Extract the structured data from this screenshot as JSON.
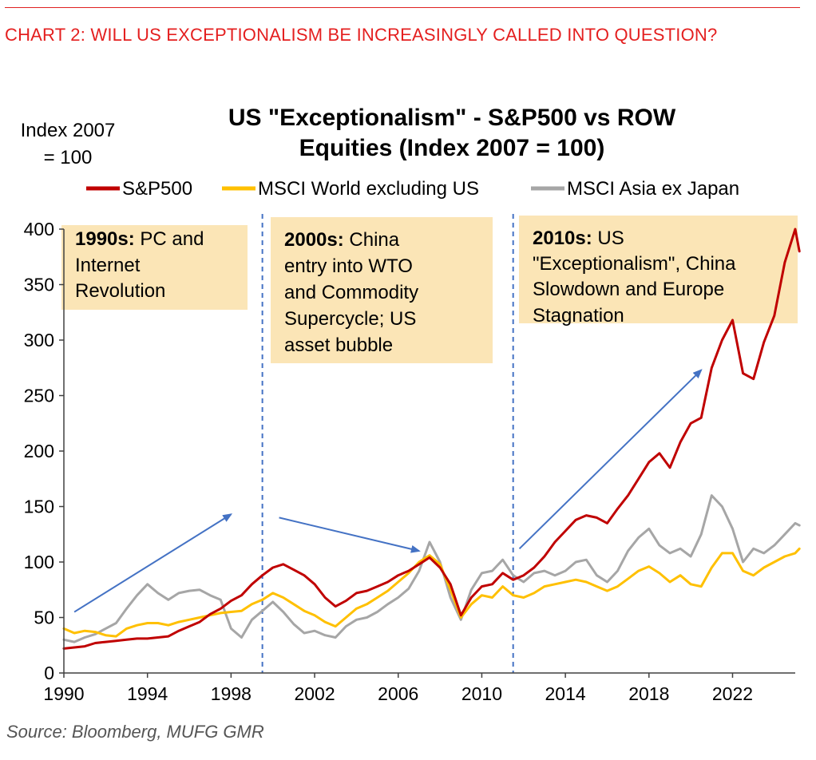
{
  "header": {
    "title": "CHART 2: WILL US EXCEPTIONALISM BE INCREASINGLY CALLED INTO QUESTION?"
  },
  "footer": {
    "source": "Source: Bloomberg, MUFG GMR"
  },
  "colors": {
    "header_red": "#e41f1f",
    "sp500": "#c00000",
    "msci_world_ex_us": "#ffc000",
    "msci_asia_ex_japan": "#a6a6a6",
    "annotation_fill": "#fbe5b6",
    "arrow": "#4472c4",
    "divider": "#4472c4"
  },
  "chart_data": {
    "type": "line",
    "title_lines": [
      "US \"Exceptionalism\" - S&P500 vs ROW",
      "Equities (Index 2007 = 100)"
    ],
    "ylabel_lines": [
      "Index 2007",
      "= 100"
    ],
    "xlabel": "",
    "xlim": [
      1990,
      2025.0
    ],
    "ylim": [
      0,
      400
    ],
    "x_ticks": [
      1990,
      1994,
      1998,
      2002,
      2006,
      2010,
      2014,
      2018,
      2022
    ],
    "y_ticks": [
      0,
      50,
      100,
      150,
      200,
      250,
      300,
      350,
      400
    ],
    "grid": false,
    "legend_position": "top",
    "series": [
      {
        "name": "S&P500",
        "color": "#c00000",
        "points": [
          [
            1990.0,
            22
          ],
          [
            1990.5,
            23
          ],
          [
            1991.0,
            24
          ],
          [
            1991.5,
            27
          ],
          [
            1992.0,
            28
          ],
          [
            1992.5,
            29
          ],
          [
            1993.0,
            30
          ],
          [
            1993.5,
            31
          ],
          [
            1994.0,
            31
          ],
          [
            1994.5,
            32
          ],
          [
            1995.0,
            33
          ],
          [
            1995.5,
            38
          ],
          [
            1996.0,
            42
          ],
          [
            1996.5,
            46
          ],
          [
            1997.0,
            53
          ],
          [
            1997.5,
            58
          ],
          [
            1998.0,
            65
          ],
          [
            1998.5,
            70
          ],
          [
            1999.0,
            80
          ],
          [
            1999.5,
            88
          ],
          [
            2000.0,
            95
          ],
          [
            2000.5,
            98
          ],
          [
            2001.0,
            93
          ],
          [
            2001.5,
            88
          ],
          [
            2002.0,
            80
          ],
          [
            2002.5,
            68
          ],
          [
            2003.0,
            60
          ],
          [
            2003.5,
            65
          ],
          [
            2004.0,
            72
          ],
          [
            2004.5,
            74
          ],
          [
            2005.0,
            78
          ],
          [
            2005.5,
            82
          ],
          [
            2006.0,
            88
          ],
          [
            2006.5,
            92
          ],
          [
            2007.0,
            98
          ],
          [
            2007.5,
            104
          ],
          [
            2008.0,
            95
          ],
          [
            2008.5,
            80
          ],
          [
            2009.0,
            52
          ],
          [
            2009.5,
            68
          ],
          [
            2010.0,
            78
          ],
          [
            2010.5,
            80
          ],
          [
            2011.0,
            90
          ],
          [
            2011.5,
            84
          ],
          [
            2012.0,
            88
          ],
          [
            2012.5,
            95
          ],
          [
            2013.0,
            105
          ],
          [
            2013.5,
            118
          ],
          [
            2014.0,
            128
          ],
          [
            2014.5,
            138
          ],
          [
            2015.0,
            142
          ],
          [
            2015.5,
            140
          ],
          [
            2016.0,
            135
          ],
          [
            2016.5,
            148
          ],
          [
            2017.0,
            160
          ],
          [
            2017.5,
            175
          ],
          [
            2018.0,
            190
          ],
          [
            2018.5,
            198
          ],
          [
            2019.0,
            185
          ],
          [
            2019.5,
            208
          ],
          [
            2020.0,
            225
          ],
          [
            2020.5,
            230
          ],
          [
            2021.0,
            275
          ],
          [
            2021.5,
            300
          ],
          [
            2022.0,
            318
          ],
          [
            2022.5,
            270
          ],
          [
            2023.0,
            265
          ],
          [
            2023.5,
            298
          ],
          [
            2024.0,
            322
          ],
          [
            2024.5,
            370
          ],
          [
            2025.0,
            400
          ],
          [
            2025.2,
            380
          ]
        ]
      },
      {
        "name": "MSCI World excluding US",
        "color": "#ffc000",
        "points": [
          [
            1990.0,
            40
          ],
          [
            1990.5,
            36
          ],
          [
            1991.0,
            38
          ],
          [
            1991.5,
            37
          ],
          [
            1992.0,
            34
          ],
          [
            1992.5,
            33
          ],
          [
            1993.0,
            40
          ],
          [
            1993.5,
            43
          ],
          [
            1994.0,
            45
          ],
          [
            1994.5,
            45
          ],
          [
            1995.0,
            43
          ],
          [
            1995.5,
            46
          ],
          [
            1996.0,
            48
          ],
          [
            1996.5,
            50
          ],
          [
            1997.0,
            52
          ],
          [
            1997.5,
            54
          ],
          [
            1998.0,
            55
          ],
          [
            1998.5,
            56
          ],
          [
            1999.0,
            62
          ],
          [
            1999.5,
            66
          ],
          [
            2000.0,
            72
          ],
          [
            2000.5,
            68
          ],
          [
            2001.0,
            62
          ],
          [
            2001.5,
            56
          ],
          [
            2002.0,
            52
          ],
          [
            2002.5,
            46
          ],
          [
            2003.0,
            42
          ],
          [
            2003.5,
            50
          ],
          [
            2004.0,
            58
          ],
          [
            2004.5,
            62
          ],
          [
            2005.0,
            68
          ],
          [
            2005.5,
            74
          ],
          [
            2006.0,
            82
          ],
          [
            2006.5,
            90
          ],
          [
            2007.0,
            100
          ],
          [
            2007.5,
            106
          ],
          [
            2008.0,
            98
          ],
          [
            2008.5,
            75
          ],
          [
            2009.0,
            50
          ],
          [
            2009.5,
            62
          ],
          [
            2010.0,
            70
          ],
          [
            2010.5,
            68
          ],
          [
            2011.0,
            78
          ],
          [
            2011.5,
            70
          ],
          [
            2012.0,
            68
          ],
          [
            2012.5,
            72
          ],
          [
            2013.0,
            78
          ],
          [
            2013.5,
            80
          ],
          [
            2014.0,
            82
          ],
          [
            2014.5,
            84
          ],
          [
            2015.0,
            82
          ],
          [
            2015.5,
            78
          ],
          [
            2016.0,
            74
          ],
          [
            2016.5,
            78
          ],
          [
            2017.0,
            85
          ],
          [
            2017.5,
            92
          ],
          [
            2018.0,
            96
          ],
          [
            2018.5,
            90
          ],
          [
            2019.0,
            82
          ],
          [
            2019.5,
            88
          ],
          [
            2020.0,
            80
          ],
          [
            2020.5,
            78
          ],
          [
            2021.0,
            95
          ],
          [
            2021.5,
            108
          ],
          [
            2022.0,
            108
          ],
          [
            2022.5,
            92
          ],
          [
            2023.0,
            88
          ],
          [
            2023.5,
            95
          ],
          [
            2024.0,
            100
          ],
          [
            2024.5,
            105
          ],
          [
            2025.0,
            108
          ],
          [
            2025.2,
            112
          ]
        ]
      },
      {
        "name": "MSCI Asia ex Japan",
        "color": "#a6a6a6",
        "points": [
          [
            1990.0,
            30
          ],
          [
            1990.5,
            28
          ],
          [
            1991.0,
            32
          ],
          [
            1991.5,
            35
          ],
          [
            1992.0,
            40
          ],
          [
            1992.5,
            45
          ],
          [
            1993.0,
            58
          ],
          [
            1993.5,
            70
          ],
          [
            1994.0,
            80
          ],
          [
            1994.5,
            72
          ],
          [
            1995.0,
            66
          ],
          [
            1995.5,
            72
          ],
          [
            1996.0,
            74
          ],
          [
            1996.5,
            75
          ],
          [
            1997.0,
            70
          ],
          [
            1997.5,
            66
          ],
          [
            1998.0,
            40
          ],
          [
            1998.5,
            32
          ],
          [
            1999.0,
            48
          ],
          [
            1999.5,
            56
          ],
          [
            2000.0,
            64
          ],
          [
            2000.5,
            55
          ],
          [
            2001.0,
            44
          ],
          [
            2001.5,
            36
          ],
          [
            2002.0,
            38
          ],
          [
            2002.5,
            34
          ],
          [
            2003.0,
            32
          ],
          [
            2003.5,
            42
          ],
          [
            2004.0,
            48
          ],
          [
            2004.5,
            50
          ],
          [
            2005.0,
            55
          ],
          [
            2005.5,
            62
          ],
          [
            2006.0,
            68
          ],
          [
            2006.5,
            76
          ],
          [
            2007.0,
            92
          ],
          [
            2007.5,
            118
          ],
          [
            2008.0,
            100
          ],
          [
            2008.5,
            68
          ],
          [
            2009.0,
            48
          ],
          [
            2009.5,
            75
          ],
          [
            2010.0,
            90
          ],
          [
            2010.5,
            92
          ],
          [
            2011.0,
            102
          ],
          [
            2011.5,
            88
          ],
          [
            2012.0,
            82
          ],
          [
            2012.5,
            90
          ],
          [
            2013.0,
            92
          ],
          [
            2013.5,
            88
          ],
          [
            2014.0,
            92
          ],
          [
            2014.5,
            100
          ],
          [
            2015.0,
            102
          ],
          [
            2015.5,
            88
          ],
          [
            2016.0,
            82
          ],
          [
            2016.5,
            92
          ],
          [
            2017.0,
            110
          ],
          [
            2017.5,
            122
          ],
          [
            2018.0,
            130
          ],
          [
            2018.5,
            115
          ],
          [
            2019.0,
            108
          ],
          [
            2019.5,
            112
          ],
          [
            2020.0,
            105
          ],
          [
            2020.5,
            125
          ],
          [
            2021.0,
            160
          ],
          [
            2021.5,
            150
          ],
          [
            2022.0,
            130
          ],
          [
            2022.5,
            100
          ],
          [
            2023.0,
            112
          ],
          [
            2023.5,
            108
          ],
          [
            2024.0,
            115
          ],
          [
            2024.5,
            125
          ],
          [
            2025.0,
            135
          ],
          [
            2025.2,
            133
          ]
        ]
      }
    ],
    "vertical_dividers": [
      1999.5,
      2011.5
    ],
    "annotations": [
      {
        "bold": "1990s:",
        "rest_first_line": " PC and",
        "lines": [
          "Internet",
          "Revolution"
        ]
      },
      {
        "bold": "2000s:",
        "rest_first_line": " China",
        "lines": [
          "entry into WTO",
          "and Commodity",
          "Supercycle; US",
          "asset bubble"
        ]
      },
      {
        "bold": "2010s:",
        "rest_first_line": " US",
        "lines": [
          "\"Exceptionalism\", China",
          "Slowdown and Europe",
          "Stagnation"
        ]
      }
    ],
    "trend_arrows": [
      {
        "from": [
          1990.5,
          55
        ],
        "to": [
          1998.0,
          143
        ]
      },
      {
        "from": [
          2000.3,
          140
        ],
        "to": [
          2007.0,
          110
        ]
      },
      {
        "from": [
          2011.8,
          112
        ],
        "to": [
          2020.5,
          273
        ]
      }
    ]
  }
}
